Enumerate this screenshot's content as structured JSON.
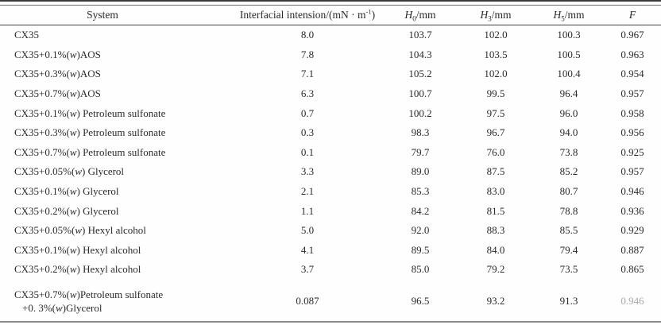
{
  "page": {
    "background_color": "#fefefe",
    "text_color": "#2b2b2b"
  },
  "table": {
    "headers": {
      "system": "System",
      "interfacial": {
        "prefix": "Interfacial intension/(mN · m",
        "sup": "-1",
        "suffix": ")"
      },
      "h0": {
        "symbol": "H",
        "sub": "0",
        "unit": "/mm"
      },
      "h3": {
        "symbol": "H",
        "sub": "3",
        "unit": "/mm"
      },
      "h5": {
        "symbol": "H",
        "sub": "5",
        "unit": "/mm"
      },
      "f": "F"
    },
    "rows": [
      {
        "system": "CX35",
        "interfacial": "8.0",
        "h0": "103.7",
        "h3": "102.0",
        "h5": "100.3",
        "f": "0.967"
      },
      {
        "system": "CX35+0.1%(w)AOS",
        "interfacial": "7.8",
        "h0": "104.3",
        "h3": "103.5",
        "h5": "100.5",
        "f": "0.963"
      },
      {
        "system": "CX35+0.3%(w)AOS",
        "interfacial": "7.1",
        "h0": "105.2",
        "h3": "102.0",
        "h5": "100.4",
        "f": "0.954"
      },
      {
        "system": "CX35+0.7%(w)AOS",
        "interfacial": "6.3",
        "h0": "100.7",
        "h3": "99.5",
        "h5": "96.4",
        "f": "0.957"
      },
      {
        "system": "CX35+0.1%(w) Petroleum sulfonate",
        "interfacial": "0.7",
        "h0": "100.2",
        "h3": "97.5",
        "h5": "96.0",
        "f": "0.958"
      },
      {
        "system": "CX35+0.3%(w) Petroleum sulfonate",
        "interfacial": "0.3",
        "h0": "98.3",
        "h3": "96.7",
        "h5": "94.0",
        "f": "0.956"
      },
      {
        "system": "CX35+0.7%(w) Petroleum sulfonate",
        "interfacial": "0.1",
        "h0": "79.7",
        "h3": "76.0",
        "h5": "73.8",
        "f": "0.925"
      },
      {
        "system": "CX35+0.05%(w) Glycerol",
        "interfacial": "3.3",
        "h0": "89.0",
        "h3": "87.5",
        "h5": "85.2",
        "f": "0.957"
      },
      {
        "system": "CX35+0.1%(w) Glycerol",
        "interfacial": "2.1",
        "h0": "85.3",
        "h3": "83.0",
        "h5": "80.7",
        "f": "0.946"
      },
      {
        "system": "CX35+0.2%(w) Glycerol",
        "interfacial": "1.1",
        "h0": "84.2",
        "h3": "81.5",
        "h5": "78.8",
        "f": "0.936"
      },
      {
        "system": "CX35+0.05%(w) Hexyl alcohol",
        "interfacial": "5.0",
        "h0": "92.0",
        "h3": "88.3",
        "h5": "85.5",
        "f": "0.929"
      },
      {
        "system": "CX35+0.1%(w) Hexyl alcohol",
        "interfacial": "4.1",
        "h0": "89.5",
        "h3": "84.0",
        "h5": "79.4",
        "f": "0.887"
      },
      {
        "system": "CX35+0.2%(w) Hexyl alcohol",
        "interfacial": "3.7",
        "h0": "85.0",
        "h3": "79.2",
        "h5": "73.5",
        "f": "0.865"
      }
    ],
    "last_row": {
      "system_line1": "CX35+0.7%(w)Petroleum sulfonate",
      "system_line2": "+0. 3%(w)Glycerol",
      "interfacial": "0.087",
      "h0": "96.5",
      "h3": "93.2",
      "h5": "91.3",
      "f": "0.946"
    }
  }
}
